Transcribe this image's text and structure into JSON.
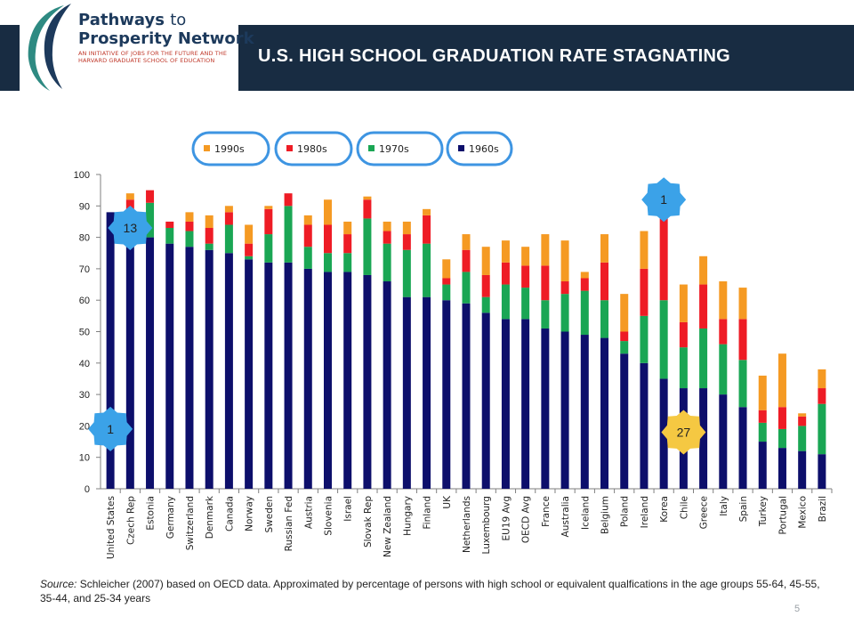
{
  "header": {
    "logo_line1": "Pathways",
    "logo_line1_to": "to",
    "logo_line2": "Prosperity Network",
    "logo_tagline": "AN INITIATIVE OF JOBS FOR THE FUTURE AND THE HARVARD GRADUATE SCHOOL OF EDUCATION",
    "title": "U.S. HIGH SCHOOL GRADUATION RATE STAGNATING"
  },
  "colors": {
    "header_bg": "#182c42",
    "c1990s": "#f59a23",
    "c1980s": "#ee1c25",
    "c1970s": "#1aa654",
    "c1960s": "#0d0f6b",
    "badge": "#3ba2e8",
    "badge_alt": "#f5c842",
    "legend_ring": "#3e95e2"
  },
  "chart_data": {
    "type": "bar",
    "stacked": true,
    "categories": [
      "United States",
      "Czech Rep",
      "Estonia",
      "Germany",
      "Switzerland",
      "Denmark",
      "Canada",
      "Norway",
      "Sweden",
      "Russian Fed",
      "Austria",
      "Slovenia",
      "Israel",
      "Slovak Rep",
      "New Zealand",
      "Hungary",
      "Finland",
      "UK",
      "Netherlands",
      "Luxembourg",
      "EU19 Avg",
      "OECD Avg",
      "France",
      "Australia",
      "Iceland",
      "Belgium",
      "Poland",
      "Ireland",
      "Korea",
      "Chile",
      "Greece",
      "Italy",
      "Spain",
      "Turkey",
      "Portugal",
      "Mexico",
      "Brazil"
    ],
    "series": [
      {
        "name": "1960s",
        "values": [
          88,
          87,
          80,
          78,
          77,
          76,
          75,
          73,
          72,
          72,
          70,
          69,
          69,
          68,
          66,
          61,
          61,
          60,
          59,
          56,
          54,
          54,
          51,
          50,
          49,
          48,
          43,
          40,
          35,
          32,
          32,
          30,
          26,
          15,
          13,
          12,
          11
        ]
      },
      {
        "name": "1970s",
        "values": [
          0,
          0,
          11,
          5,
          5,
          2,
          9,
          1,
          9,
          18,
          7,
          6,
          6,
          18,
          12,
          15,
          17,
          5,
          10,
          5,
          11,
          10,
          9,
          12,
          14,
          12,
          4,
          15,
          25,
          13,
          19,
          16,
          15,
          6,
          6,
          8,
          16
        ]
      },
      {
        "name": "1980s",
        "values": [
          0,
          5,
          4,
          2,
          3,
          5,
          4,
          4,
          8,
          4,
          7,
          9,
          6,
          6,
          4,
          5,
          9,
          2,
          7,
          7,
          7,
          7,
          11,
          4,
          4,
          12,
          3,
          15,
          27,
          8,
          14,
          8,
          13,
          4,
          7,
          3,
          5
        ]
      },
      {
        "name": "1990s",
        "values": [
          0,
          2,
          0,
          0,
          3,
          4,
          2,
          6,
          1,
          0,
          3,
          8,
          4,
          1,
          3,
          4,
          2,
          6,
          5,
          9,
          7,
          6,
          10,
          13,
          2,
          9,
          12,
          12,
          0,
          12,
          9,
          12,
          10,
          11,
          17,
          1,
          6
        ]
      }
    ],
    "legend_order": [
      "1990s",
      "1980s",
      "1970s",
      "1960s"
    ],
    "ylim": [
      0,
      100
    ],
    "yticks": [
      0,
      10,
      20,
      30,
      40,
      50,
      60,
      70,
      80,
      90,
      100
    ],
    "legend_position": "top",
    "grid": false,
    "badges": [
      {
        "label": "13",
        "style": "badge",
        "x": "Czech Rep",
        "y": 83
      },
      {
        "label": "1",
        "style": "badge",
        "x": "United States",
        "y": 19
      },
      {
        "label": "1",
        "style": "badge",
        "x": "Korea",
        "y": 92
      },
      {
        "label": "27",
        "style": "badge_alt",
        "x": "Chile",
        "y": 18
      }
    ]
  },
  "source": {
    "prefix": "Source:",
    "text": " Schleicher (2007) based on OECD data.  Approximated by percentage of persons with high school or equivalent qualfications in the age groups 55-64, 45-55, 35-44, and 25-34 years"
  },
  "page_number": "5"
}
